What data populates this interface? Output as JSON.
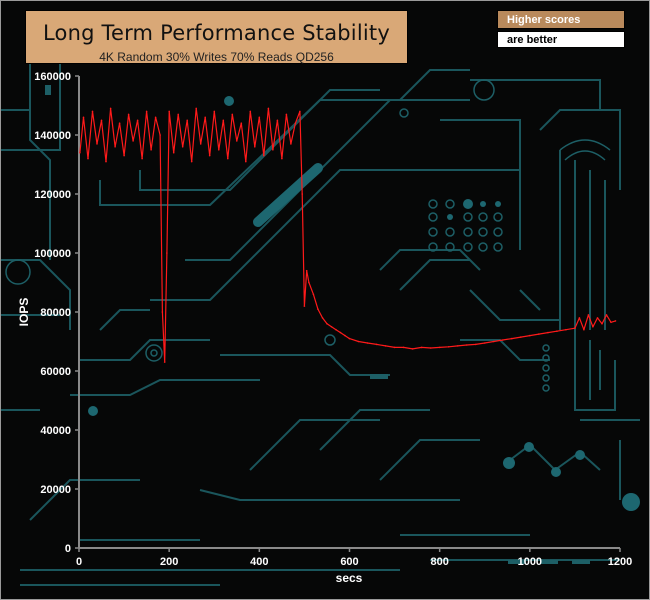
{
  "colors": {
    "series": "#ff1a1a",
    "title_bg": "#d9a877",
    "legend_bg": "#b98a5c",
    "axis": "#8a8a8a",
    "circuit": "#1d5f66"
  },
  "chart_data": {
    "type": "line",
    "title": "Long Term Performance Stability",
    "subtitle": "4K Random 30% Writes 70% Reads QD256",
    "legend": [
      "Higher scores",
      "are better"
    ],
    "xlabel": "secs",
    "ylabel": "IOPS",
    "xlim": [
      0,
      1200
    ],
    "ylim": [
      0,
      160000
    ],
    "xticks": [
      "0",
      "200",
      "400",
      "600",
      "800",
      "1000",
      "1200"
    ],
    "yticks": [
      "0",
      "20000",
      "40000",
      "60000",
      "80000",
      "100000",
      "120000",
      "140000",
      "160000"
    ],
    "series": [
      {
        "name": "IOPS",
        "x": [
          2,
          10,
          20,
          30,
          40,
          50,
          60,
          70,
          80,
          90,
          100,
          110,
          120,
          130,
          140,
          150,
          160,
          170,
          180,
          185,
          190,
          195,
          200,
          210,
          220,
          230,
          240,
          250,
          260,
          270,
          280,
          290,
          300,
          310,
          320,
          330,
          340,
          350,
          360,
          370,
          380,
          390,
          400,
          410,
          420,
          430,
          440,
          450,
          460,
          470,
          480,
          490,
          495,
          500,
          505,
          510,
          520,
          530,
          540,
          550,
          560,
          570,
          580,
          590,
          600,
          620,
          640,
          660,
          680,
          700,
          720,
          740,
          760,
          780,
          800,
          820,
          840,
          860,
          880,
          900,
          920,
          940,
          960,
          980,
          1000,
          1020,
          1040,
          1060,
          1080,
          1100,
          1110,
          1120,
          1130,
          1140,
          1150,
          1160,
          1170,
          1180,
          1190
        ],
        "values": [
          134000,
          146000,
          132000,
          148000,
          137000,
          145000,
          131000,
          149000,
          136000,
          144000,
          133000,
          147000,
          138000,
          145000,
          132000,
          148000,
          135000,
          146000,
          140000,
          80000,
          63000,
          100000,
          148000,
          134000,
          147000,
          136000,
          145000,
          131000,
          149000,
          137000,
          146000,
          133000,
          148000,
          135000,
          145000,
          132000,
          147000,
          138000,
          144000,
          131000,
          148000,
          136000,
          146000,
          133000,
          149000,
          135000,
          145000,
          132000,
          147000,
          137000,
          144000,
          148000,
          120000,
          82000,
          94000,
          90000,
          86000,
          81000,
          78000,
          76000,
          75000,
          74000,
          73000,
          72000,
          71000,
          70000,
          69500,
          69000,
          68500,
          68000,
          68000,
          67500,
          68000,
          67800,
          68000,
          68200,
          68500,
          68800,
          69000,
          69500,
          70000,
          70500,
          71000,
          71500,
          72000,
          72500,
          73000,
          73500,
          74000,
          74500,
          78000,
          74000,
          79000,
          75000,
          78000,
          76000,
          79000,
          76500,
          77000
        ]
      }
    ]
  }
}
